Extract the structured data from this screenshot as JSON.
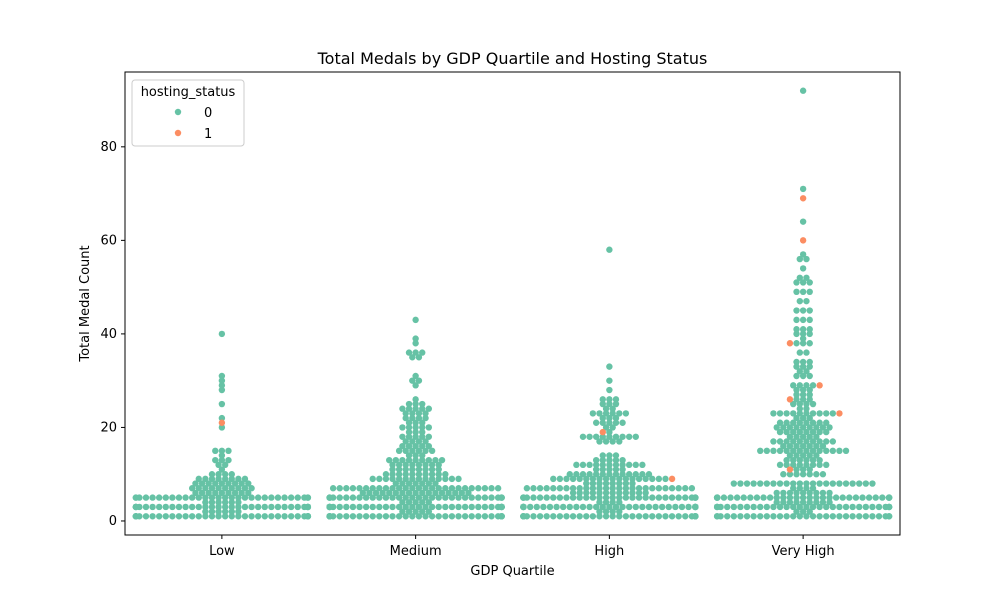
{
  "chart_data": {
    "type": "scatter",
    "subtype": "swarm",
    "title": "Total Medals by GDP Quartile and Hosting Status",
    "xlabel": "GDP Quartile",
    "ylabel": "Total Medal Count",
    "categories": [
      "Low",
      "Medium",
      "High",
      "Very High"
    ],
    "ylim": [
      -3,
      96
    ],
    "yticks": [
      0,
      20,
      40,
      60,
      80
    ],
    "grid": false,
    "legend": {
      "title": "hosting_status",
      "placement": "top-left",
      "entries": [
        {
          "label": "0",
          "color": "#66c2a5"
        },
        {
          "label": "1",
          "color": "#fc8d62"
        }
      ]
    },
    "colors": {
      "hosting_status_0": "#66c2a5",
      "hosting_status_1": "#fc8d62",
      "axis": "#000000"
    },
    "series": [
      {
        "name": "0",
        "points_by_category": {
          "Low": {
            "counts": {
              "1": 36,
              "2": 6,
              "3": 34,
              "4": 6,
              "5": 30,
              "6": 9,
              "7": 10,
              "8": 9,
              "9": 8,
              "10": 4,
              "11": 1,
              "12": 2,
              "13": 3,
              "14": 1,
              "15": 3,
              "20": 1,
              "22": 1,
              "25": 1,
              "28": 1,
              "29": 1,
              "30": 1,
              "31": 1,
              "40": 1
            },
            "max": 40
          },
          "Medium": {
            "counts": {
              "1": 36,
              "2": 5,
              "3": 36,
              "4": 5,
              "5": 32,
              "6": 17,
              "7": 26,
              "8": 7,
              "9": 14,
              "10": 10,
              "11": 8,
              "12": 8,
              "13": 9,
              "14": 3,
              "15": 6,
              "16": 5,
              "17": 4,
              "18": 5,
              "19": 3,
              "20": 5,
              "21": 3,
              "22": 4,
              "23": 4,
              "24": 5,
              "25": 3,
              "26": 1,
              "29": 1,
              "30": 2,
              "31": 1,
              "35": 2,
              "36": 3,
              "38": 1,
              "39": 1,
              "43": 1
            },
            "max": 43
          },
          "High": {
            "counts": {
              "1": 36,
              "2": 4,
              "3": 35,
              "4": 4,
              "5": 32,
              "6": 12,
              "7": 26,
              "8": 8,
              "9": 18,
              "10": 13,
              "11": 5,
              "12": 11,
              "13": 5,
              "14": 3,
              "17": 4,
              "18": 9,
              "19": 1,
              "20": 2,
              "21": 5,
              "22": 3,
              "23": 6,
              "24": 2,
              "25": 3,
              "26": 3,
              "28": 1,
              "30": 1,
              "33": 1,
              "58": 1
            },
            "max": 58
          },
          "Very High": {
            "counts": {
              "1": 30,
              "2": 3,
              "3": 32,
              "4": 9,
              "5": 33,
              "6": 9,
              "7": 4,
              "8": 22,
              "10": 7,
              "11": 3,
              "12": 8,
              "13": 6,
              "14": 5,
              "15": 14,
              "16": 7,
              "17": 10,
              "18": 5,
              "19": 8,
              "20": 9,
              "21": 8,
              "22": 3,
              "23": 10,
              "24": 2,
              "25": 4,
              "26": 3,
              "27": 3,
              "28": 3,
              "29": 4,
              "31": 3,
              "32": 2,
              "33": 3,
              "34": 3,
              "36": 2,
              "38": 3,
              "39": 1,
              "40": 3,
              "41": 3,
              "43": 3,
              "45": 3,
              "47": 2,
              "49": 3,
              "51": 3,
              "52": 2,
              "54": 1,
              "56": 2,
              "57": 1,
              "64": 1,
              "71": 1,
              "92": 1
            },
            "max": 92
          }
        }
      },
      {
        "name": "1",
        "points": [
          {
            "category": "Low",
            "y": 21
          },
          {
            "category": "High",
            "y": 19
          },
          {
            "category": "High",
            "y": 9
          },
          {
            "category": "Very High",
            "y": 69
          },
          {
            "category": "Very High",
            "y": 60
          },
          {
            "category": "Very High",
            "y": 38
          },
          {
            "category": "Very High",
            "y": 29
          },
          {
            "category": "Very High",
            "y": 26
          },
          {
            "category": "Very High",
            "y": 23
          },
          {
            "category": "Very High",
            "y": 11
          }
        ]
      }
    ]
  }
}
